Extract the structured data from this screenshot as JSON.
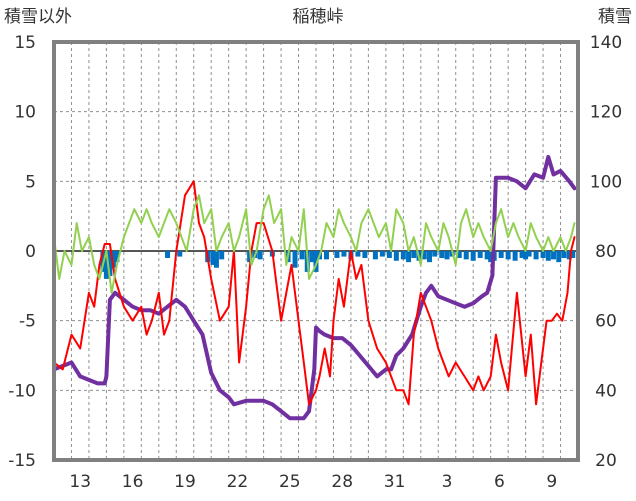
{
  "chart_data": {
    "type": "line",
    "title": "稲穂峠",
    "ylabel_left": "積雪以外",
    "ylabel_right": "積雪",
    "ylim_left": [
      -15,
      15
    ],
    "yticks_left": [
      -15,
      -10,
      -5,
      0,
      5,
      10,
      15
    ],
    "ylim_right": [
      20,
      140
    ],
    "yticks_right": [
      20,
      40,
      60,
      80,
      100,
      120,
      140
    ],
    "xlim": [
      0,
      30
    ],
    "x_tick_labels": [
      "13",
      "16",
      "19",
      "22",
      "25",
      "28",
      "31",
      "3",
      "6",
      "9"
    ],
    "x_tick_positions": [
      1.5,
      4.5,
      7.5,
      10.5,
      13.5,
      16.5,
      19.5,
      22.5,
      25.5,
      28.5
    ],
    "grid": true,
    "colors": {
      "snow_depth": "#7030a0",
      "temperature": "#ff0000",
      "wind": "#92d050",
      "precipitation": "#0070c0",
      "frame": "#808080",
      "grid": "#909090"
    },
    "series": [
      {
        "key": "snow_depth",
        "axis": "right",
        "style": "line",
        "x": [
          0,
          1,
          1.5,
          2,
          2.5,
          2.9,
          3.0,
          3.2,
          3.5,
          4.0,
          4.5,
          5.0,
          5.5,
          6.0,
          6.5,
          7.0,
          7.5,
          8.0,
          8.5,
          9.0,
          9.5,
          10.0,
          10.3,
          11,
          12,
          12.5,
          13,
          13.5,
          14,
          14.3,
          14.6,
          14.9,
          15.0,
          15.2,
          15.5,
          16,
          16.5,
          17,
          17.5,
          18,
          18.5,
          19,
          19.3,
          19.6,
          20,
          20.5,
          21,
          21.3,
          21.6,
          22,
          22.5,
          23,
          23.5,
          24,
          24.5,
          24.8,
          25.1,
          25.3,
          26,
          26.5,
          27,
          27.5,
          28,
          28.3,
          28.6,
          29,
          29.5,
          29.8
        ],
        "y": [
          46,
          48,
          44,
          43,
          42,
          42,
          44,
          66,
          68,
          66,
          64,
          63,
          63,
          62,
          64,
          66,
          64,
          60,
          56,
          45,
          40,
          38,
          36,
          37,
          37,
          36,
          34,
          32,
          32,
          32,
          34,
          46,
          58,
          57,
          56,
          55,
          55,
          53,
          50,
          47,
          44,
          46,
          46,
          50,
          52,
          56,
          64,
          68,
          70,
          67,
          66,
          65,
          64,
          65,
          67,
          68,
          73,
          101,
          101,
          100,
          98,
          102,
          101,
          107,
          102,
          103,
          100,
          98
        ]
      },
      {
        "key": "temperature",
        "axis": "left",
        "style": "line",
        "x": [
          0,
          0.5,
          1,
          1.5,
          2,
          2.3,
          2.6,
          2.9,
          3.2,
          3.5,
          4.0,
          4.5,
          5.0,
          5.3,
          5.6,
          6.0,
          6.3,
          6.6,
          7.0,
          7.5,
          8.0,
          8.3,
          8.6,
          9.0,
          9.5,
          10.0,
          10.3,
          10.6,
          11.0,
          11.3,
          11.6,
          12.0,
          12.5,
          13.0,
          13.3,
          13.6,
          14.0,
          14.3,
          14.6,
          15.0,
          15.2,
          15.5,
          15.8,
          16.0,
          16.3,
          16.6,
          17.0,
          17.3,
          17.6,
          18.0,
          18.5,
          19.0,
          19.3,
          19.6,
          20.0,
          20.3,
          20.6,
          21.0,
          21.3,
          21.6,
          22.0,
          22.3,
          22.6,
          23.0,
          23.5,
          24.0,
          24.3,
          24.6,
          25.0,
          25.3,
          25.6,
          26.0,
          26.5,
          27.0,
          27.3,
          27.6,
          27.9,
          28.2,
          28.5,
          28.8,
          29.1,
          29.4,
          29.6,
          29.8
        ],
        "y": [
          -8,
          -8.5,
          -6,
          -7,
          -3,
          -4,
          -1,
          0.5,
          0.5,
          -2,
          -4,
          -5,
          -4,
          -6,
          -5,
          -3,
          -6,
          -5,
          0,
          4,
          5,
          2,
          1,
          -2,
          -5,
          -4,
          0,
          -8,
          -4,
          0,
          2,
          2,
          0,
          -5,
          -3,
          -1,
          -5,
          -8,
          -11,
          -10,
          -9,
          -7,
          -9,
          -5,
          -2,
          -4,
          0,
          -2,
          -1,
          -5,
          -7,
          -8,
          -9,
          -10,
          -10,
          -11,
          -6,
          -3,
          -4,
          -5,
          -7,
          -8,
          -9,
          -8,
          -9,
          -10,
          -9,
          -10,
          -9,
          -6,
          -8,
          -10,
          -3,
          -9,
          -6,
          -11,
          -8,
          -5,
          -5,
          -4.5,
          -5,
          -3,
          0,
          1
        ]
      },
      {
        "key": "wind",
        "axis": "left",
        "style": "line",
        "x": [
          0,
          0.3,
          0.6,
          1.0,
          1.3,
          1.6,
          2.0,
          2.3,
          2.6,
          3.0,
          3.3,
          3.6,
          4.0,
          4.3,
          4.6,
          5.0,
          5.3,
          5.6,
          6.0,
          6.3,
          6.6,
          7.0,
          7.3,
          7.6,
          8.0,
          8.3,
          8.6,
          9.0,
          9.3,
          9.6,
          10.0,
          10.3,
          10.6,
          11.0,
          11.3,
          11.6,
          12.0,
          12.3,
          12.6,
          13.0,
          13.3,
          13.6,
          14.0,
          14.3,
          14.6,
          15.0,
          15.3,
          15.6,
          16.0,
          16.3,
          16.6,
          17.0,
          17.3,
          17.6,
          18.0,
          18.3,
          18.6,
          19.0,
          19.3,
          19.6,
          20.0,
          20.3,
          20.6,
          21.0,
          21.3,
          21.6,
          22.0,
          22.3,
          22.6,
          23.0,
          23.3,
          23.6,
          24.0,
          24.3,
          24.6,
          25.0,
          25.3,
          25.6,
          26.0,
          26.3,
          26.6,
          27.0,
          27.3,
          27.6,
          28.0,
          28.3,
          28.6,
          29.0,
          29.3,
          29.6,
          29.8
        ],
        "y": [
          1,
          -2,
          0,
          -1,
          2,
          0,
          1,
          -1,
          -2,
          0,
          -3,
          -1,
          1,
          2,
          3,
          2,
          3,
          2,
          1,
          2,
          3,
          2,
          1,
          0,
          3,
          4,
          2,
          3,
          0,
          1,
          2,
          0,
          1,
          3,
          -1,
          0,
          3,
          4,
          2,
          3,
          -1,
          1,
          0,
          3,
          -2,
          -1,
          0,
          2,
          1,
          3,
          2,
          1,
          0,
          2,
          3,
          2,
          1,
          2,
          0,
          3,
          2,
          0,
          1,
          -1,
          2,
          1,
          0,
          2,
          1,
          -1,
          2,
          3,
          1,
          2,
          1,
          0,
          2,
          3,
          1,
          2,
          1,
          0,
          2,
          1,
          0,
          1,
          0,
          1,
          0,
          1,
          2
        ]
      },
      {
        "key": "precipitation",
        "axis": "left",
        "style": "bar",
        "x": [
          2.8,
          3.0,
          3.2,
          3.4,
          3.6,
          6.5,
          7.2,
          8.8,
          9.1,
          9.3,
          9.6,
          11.2,
          11.5,
          11.8,
          12.5,
          13.4,
          13.8,
          14.2,
          14.5,
          14.8,
          15.0,
          15.2,
          15.6,
          16.2,
          16.6,
          17.0,
          17.4,
          17.8,
          18.4,
          18.8,
          19.2,
          19.6,
          20.0,
          20.3,
          20.6,
          20.9,
          21.2,
          21.5,
          21.8,
          22.2,
          22.5,
          22.8,
          23.2,
          23.6,
          24.0,
          24.4,
          24.8,
          25.0,
          25.2,
          25.6,
          26.0,
          26.4,
          26.8,
          27.0,
          27.2,
          27.6,
          28.0,
          28.3,
          28.6,
          28.9,
          29.2,
          29.5,
          29.7
        ],
        "y": [
          -1.5,
          -2,
          -1.8,
          -1.2,
          -0.8,
          -0.5,
          -0.4,
          -0.8,
          -1,
          -1.2,
          -0.6,
          -0.8,
          -0.5,
          -0.6,
          -0.4,
          -0.8,
          -1.2,
          -0.6,
          -1.5,
          -0.8,
          -1.5,
          -0.6,
          -0.6,
          -0.5,
          -0.4,
          -0.6,
          -0.4,
          -0.5,
          -0.6,
          -0.4,
          -0.5,
          -0.7,
          -0.6,
          -0.8,
          -0.5,
          -0.7,
          -0.6,
          -0.8,
          -0.4,
          -0.5,
          -0.6,
          -0.4,
          -0.5,
          -0.6,
          -0.7,
          -0.5,
          -0.6,
          -0.8,
          -0.7,
          -0.5,
          -0.6,
          -0.7,
          -0.5,
          -0.6,
          -0.4,
          -0.6,
          -0.5,
          -0.7,
          -0.6,
          -0.8,
          -0.5,
          -0.6,
          -0.5
        ]
      }
    ]
  }
}
